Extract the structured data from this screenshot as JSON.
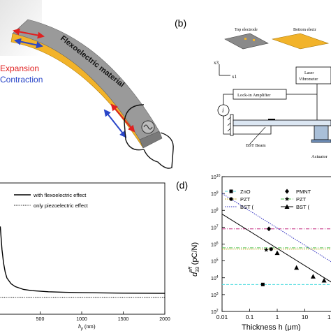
{
  "panel_a": {
    "label_expansion": "Expansion",
    "label_contraction": "Contraction",
    "label_material": "Flexoelectric material",
    "colors": {
      "beam_top": "#9a9a9a",
      "beam_side": "#f2b32a",
      "expansion": "#e02020",
      "contraction": "#2a46c8"
    }
  },
  "panel_b": {
    "panel_label": "(b)",
    "top_electrode": "Top electrode",
    "bottom_electrode": "Bottom electr",
    "axis_x3": "x3",
    "axis_x1": "x1",
    "laser_vibrometer_1": "Laser",
    "laser_vibrometer_2": "Vibrometer",
    "lock_in": "Lock-in Amplifier",
    "current": "i",
    "beam": "BST Beam",
    "actuator": "Actuator"
  },
  "panel_c": {
    "legend": [
      "with flexoelectric effect",
      "only piezoelectric effect"
    ],
    "xlabel": "h_p (nm)",
    "xlabel_main": "h",
    "xlabel_sub": "p",
    "xlabel_unit": " (nm)",
    "chart_data": {
      "type": "line",
      "x_ticks": [
        "500",
        "1000",
        "1500",
        "2000"
      ],
      "xlim": [
        0,
        2000
      ],
      "series": [
        {
          "name": "with flexoelectric effect",
          "style": "solid",
          "x": [
            20,
            40,
            60,
            80,
            100,
            150,
            200,
            300,
            400,
            600,
            800,
            1000,
            1500,
            2000
          ],
          "y": [
            0.62,
            0.42,
            0.3,
            0.22,
            0.17,
            0.12,
            0.095,
            0.07,
            0.06,
            0.05,
            0.045,
            0.042,
            0.038,
            0.036
          ]
        },
        {
          "name": "only piezoelectric effect",
          "style": "dotted",
          "x": [
            0,
            2000
          ],
          "y": [
            0,
            0
          ]
        }
      ]
    }
  },
  "panel_d": {
    "panel_label": "(d)",
    "ylabel_main": "d",
    "ylabel_sup": "eff",
    "ylabel_sub": "33",
    "ylabel_unit": " (pC/N)",
    "xlabel": "Thickness h (μm)",
    "legend": [
      {
        "name": "ZnO",
        "marker": "square"
      },
      {
        "name": "PMNT",
        "marker": "diamond"
      },
      {
        "name": "PZT",
        "marker": "circle"
      },
      {
        "name": "PZT",
        "marker": "star"
      },
      {
        "name": "BST (",
        "marker": "none"
      },
      {
        "name": "BST (",
        "marker": "triangle"
      }
    ],
    "colors": {
      "zno": "#55dde0",
      "pmnt": "#c0207a",
      "pzt1": "#b8a000",
      "pzt2": "#50c050",
      "bst1": "#3030c0",
      "bst2": "#000000"
    },
    "chart_data": {
      "type": "scatter",
      "x_scale": "log",
      "y_scale": "log",
      "xlim": [
        0.01,
        100
      ],
      "ylim": [
        100,
        10000000000
      ],
      "x_ticks": [
        "0.01",
        "0.1",
        "1",
        "10",
        "100"
      ],
      "y_ticks_exp": [
        "2",
        "3",
        "4",
        "5",
        "6",
        "7",
        "8",
        "9",
        "10"
      ],
      "y_tick_base": "10",
      "reference_lines": [
        {
          "name": "ZnO",
          "y": 4000,
          "style": "dashed"
        },
        {
          "name": "PMNT",
          "y": 8000000,
          "style": "dashdot"
        },
        {
          "name": "PZT",
          "y": 500000,
          "style": "dotted"
        },
        {
          "name": "PZT",
          "y": 600000,
          "style": "dashdot"
        }
      ],
      "trend_lines": [
        {
          "name": "BST",
          "style": "dotted",
          "x": [
            0.01,
            100
          ],
          "y": [
            1000000000,
            80000
          ]
        },
        {
          "name": "BST",
          "style": "solid",
          "x": [
            0.01,
            100
          ],
          "y": [
            60000000,
            5000
          ]
        }
      ],
      "points": [
        {
          "name": "ZnO",
          "marker": "square",
          "x": 0.3,
          "y": 4000
        },
        {
          "name": "PMNT",
          "marker": "diamond",
          "x": 0.5,
          "y": 8000000
        },
        {
          "name": "PZT",
          "marker": "circle",
          "x": 0.6,
          "y": 500000
        },
        {
          "name": "PZT",
          "marker": "star",
          "x": 0.4,
          "y": 450000
        },
        {
          "name": "BST",
          "marker": "triangle",
          "x": 1,
          "y": 300000
        },
        {
          "name": "BST",
          "marker": "triangle",
          "x": 5,
          "y": 40000
        },
        {
          "name": "BST",
          "marker": "triangle",
          "x": 20,
          "y": 12000
        },
        {
          "name": "BST",
          "marker": "triangle",
          "x": 50,
          "y": 7000
        }
      ]
    }
  }
}
